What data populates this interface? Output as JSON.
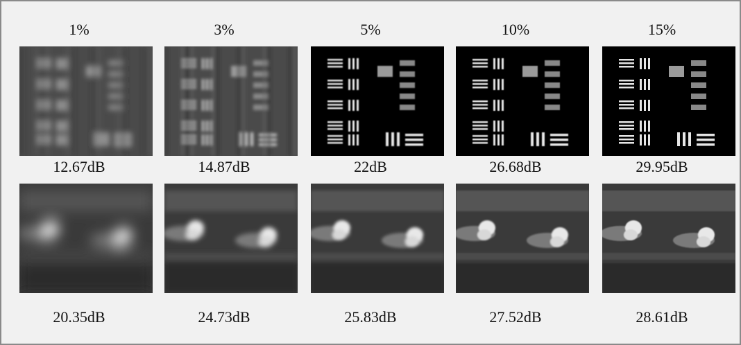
{
  "headers": [
    "1%",
    "3%",
    "5%",
    "10%",
    "15%"
  ],
  "rows": [
    {
      "psnr": [
        "12.67dB",
        "14.87dB",
        "22dB",
        "26.68dB",
        "29.95dB"
      ]
    },
    {
      "psnr": [
        "20.35dB",
        "24.73dB",
        "25.83dB",
        "27.52dB",
        "28.61dB"
      ]
    }
  ]
}
